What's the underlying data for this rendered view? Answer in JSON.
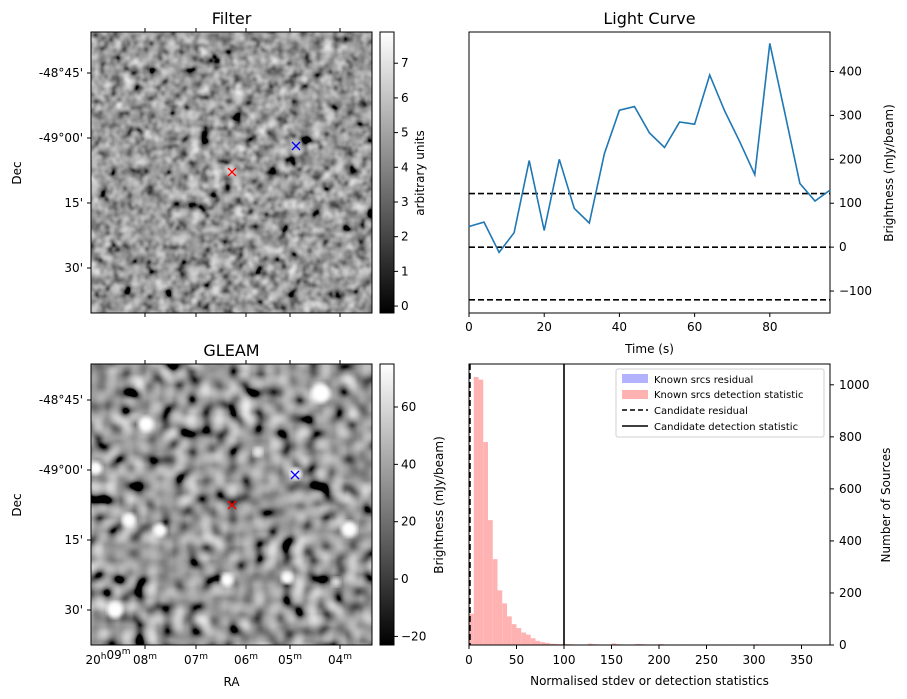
{
  "chart_data": [
    {
      "type": "heatmap",
      "title": "Filter",
      "xlabel": "",
      "ylabel": "Dec",
      "y_ticks": [
        "-48°45'",
        "-49°00'",
        "15'",
        "30'"
      ],
      "colorbar": {
        "label": "arbitrary units",
        "range": [
          -0.2,
          7.9
        ],
        "ticks": [
          0,
          1,
          2,
          3,
          4,
          5,
          6,
          7
        ],
        "colormap": "gray"
      },
      "markers": [
        {
          "symbol": "x",
          "color": "#ff0000"
        },
        {
          "symbol": "x",
          "color": "#0000ff"
        }
      ]
    },
    {
      "type": "line",
      "title": "Light Curve",
      "xlabel": "Time (s)",
      "ylabel": "Brightness (mJy/beam)",
      "xlim": [
        0,
        96
      ],
      "ylim": [
        -150,
        490
      ],
      "x_ticks": [
        0,
        20,
        40,
        60,
        80
      ],
      "y_ticks": [
        -100,
        0,
        100,
        200,
        300,
        400
      ],
      "y_axis_side": "right",
      "series": [
        {
          "color": "#1f77b4",
          "x": [
            0,
            4,
            8,
            12,
            16,
            20,
            24,
            28,
            32,
            36,
            40,
            44,
            48,
            52,
            56,
            60,
            64,
            68,
            72,
            76,
            80,
            84,
            88,
            92,
            96
          ],
          "values": [
            47,
            57,
            -12,
            33,
            197,
            38,
            200,
            88,
            55,
            213,
            312,
            320,
            260,
            227,
            285,
            280,
            392,
            310,
            240,
            165,
            464,
            305,
            145,
            105,
            130
          ]
        }
      ],
      "hlines": [
        {
          "y": 122,
          "style": "dashed",
          "color": "#000000"
        },
        {
          "y": 0,
          "style": "dashed",
          "color": "#000000"
        },
        {
          "y": -120,
          "style": "dashed",
          "color": "#000000"
        }
      ]
    },
    {
      "type": "heatmap",
      "title": "GLEAM",
      "xlabel": "RA",
      "ylabel": "Dec",
      "y_ticks": [
        "-48°45'",
        "-49°00'",
        "15'",
        "30'"
      ],
      "x_ticks": [
        {
          "h": "20",
          "hs": "h",
          "m": "09",
          "ms": "m"
        },
        {
          "h": "",
          "hs": "",
          "m": "08",
          "ms": "m"
        },
        {
          "h": "",
          "hs": "",
          "m": "07",
          "ms": "m"
        },
        {
          "h": "",
          "hs": "",
          "m": "06",
          "ms": "m"
        },
        {
          "h": "",
          "hs": "",
          "m": "05",
          "ms": "m"
        },
        {
          "h": "",
          "hs": "",
          "m": "04",
          "ms": "m"
        }
      ],
      "colorbar": {
        "range": [
          -23,
          75
        ],
        "ticks": [
          -20,
          0,
          20,
          40,
          60
        ],
        "colormap": "gray"
      },
      "markers": [
        {
          "symbol": "x",
          "color": "#ff0000"
        },
        {
          "symbol": "x",
          "color": "#0000ff"
        }
      ]
    },
    {
      "type": "bar",
      "title": "",
      "xlabel": "Normalised stdev or detection statistics",
      "ylabel": "Brightness (mJy/beam)",
      "y2label": "Number of Sources",
      "xlim": [
        0,
        380
      ],
      "ylim": [
        0,
        1080
      ],
      "x_ticks": [
        0,
        50,
        100,
        150,
        200,
        250,
        300,
        350
      ],
      "y_ticks": [
        0,
        200,
        400,
        600,
        800,
        1000
      ],
      "bin_width": 5,
      "bin_start": 0,
      "series": [
        {
          "name": "Known srcs residual",
          "color": "#b2b2ff",
          "values": []
        },
        {
          "name": "Known srcs detection statistic",
          "color": "#ffb2b2",
          "values": [
            120,
            1030,
            1020,
            780,
            480,
            330,
            210,
            160,
            110,
            80,
            65,
            48,
            40,
            26,
            16,
            11,
            8,
            5,
            4,
            3,
            4,
            3,
            2,
            2,
            2,
            5,
            3,
            2,
            2,
            1,
            6,
            3,
            2,
            1,
            1,
            4,
            3,
            2,
            2,
            1,
            4,
            2,
            1,
            1,
            1,
            2,
            1,
            1,
            1,
            1,
            2,
            1,
            1,
            1,
            1,
            2,
            1,
            1,
            1,
            1,
            3,
            2,
            1,
            1,
            1,
            1,
            1,
            1,
            1,
            1,
            1,
            1,
            1,
            1,
            1
          ]
        }
      ],
      "vlines": [
        {
          "name": "Candidate residual",
          "x": 1,
          "style": "dashed",
          "color": "#000000"
        },
        {
          "name": "Candidate detection statistic",
          "x": 100,
          "style": "solid",
          "color": "#000000"
        }
      ],
      "legend": "top-right"
    }
  ]
}
